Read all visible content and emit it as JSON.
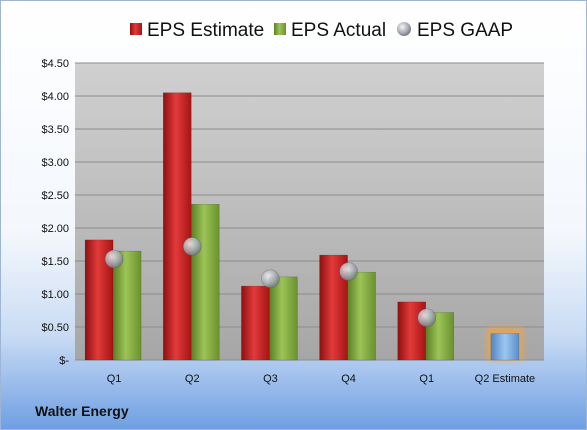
{
  "chart_data": {
    "type": "bar",
    "title": "",
    "xlabel": "",
    "ylabel": "",
    "ylim": [
      0,
      4.5
    ],
    "yticks": [
      "$4.50",
      "$4.00",
      "$3.50",
      "$3.00",
      "$2.50",
      "$2.00",
      "$1.50",
      "$1.00",
      "$0.50",
      "$-"
    ],
    "categories": [
      "Q1",
      "Q2",
      "Q3",
      "Q4",
      "Q1",
      "Q2 Estimate"
    ],
    "series": [
      {
        "name": "EPS Estimate",
        "color": "#cc1f1f",
        "values": [
          1.82,
          4.05,
          1.12,
          1.59,
          0.88,
          null
        ]
      },
      {
        "name": "EPS Actual",
        "color": "#7fa63b",
        "values": [
          1.65,
          2.36,
          1.26,
          1.33,
          0.72,
          null
        ]
      },
      {
        "name": "EPS GAAP",
        "color": "#b9bcc4",
        "values": [
          1.53,
          1.72,
          1.23,
          1.34,
          0.64,
          null
        ]
      }
    ],
    "estimate_bar": {
      "category": "Q2 Estimate",
      "value": 0.4,
      "color": "#6fa7dc",
      "glow": "#f5a340"
    },
    "legend_position": "top",
    "grid": true
  },
  "company": "Walter Energy"
}
